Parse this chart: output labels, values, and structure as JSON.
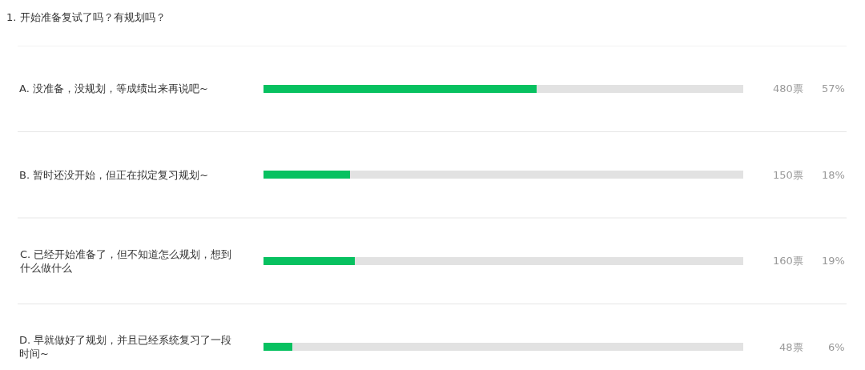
{
  "chart_data": {
    "type": "bar",
    "title": "1. 开始准备复试了吗？有规划吗？",
    "orientation": "horizontal",
    "stacked": true,
    "categories": [
      "A. 没准备，没规划，等成绩出来再说吧~",
      "B. 暂时还没开始，但正在拟定复习规划~",
      "C. 已经开始准备了，但不知道怎么规划，想到什么做什么",
      "D. 早就做好了规划，并且已经系统复习了一段时间~"
    ],
    "series": [
      {
        "color": "#07c160",
        "values": [
          57,
          18,
          19,
          6
        ],
        "value_labels": [
          "57%",
          "18%",
          "19%",
          "6%"
        ]
      },
      {
        "color": "#e2e2e2",
        "values": [
          43,
          82,
          81,
          94
        ]
      }
    ],
    "xlim": [
      0,
      100
    ],
    "tick_labels": "y",
    "grid": "y",
    "annotations": [
      "480票",
      "150票",
      "160票",
      "48票"
    ]
  }
}
